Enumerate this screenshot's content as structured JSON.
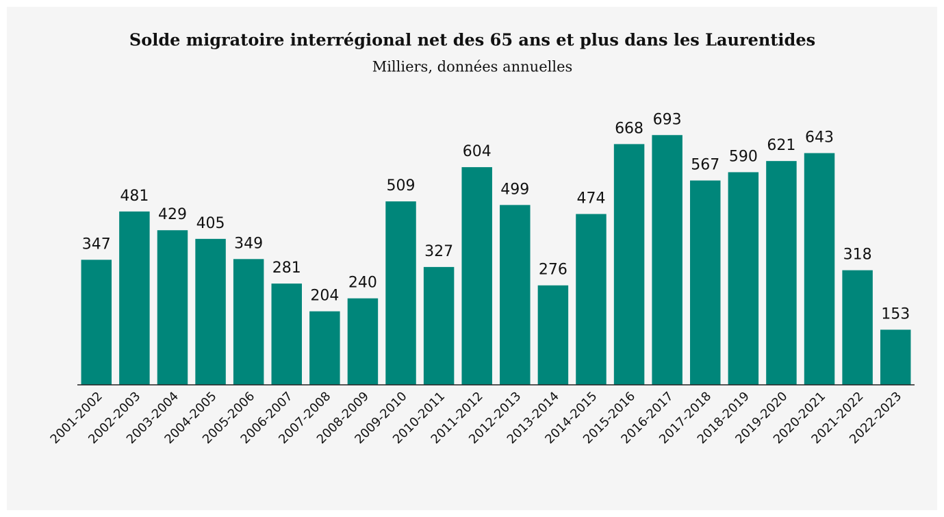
{
  "chart_data": {
    "type": "bar",
    "title": "Solde migratoire interrégional net des 65 ans et plus dans les Laurentides",
    "subtitle": "Milliers, données annuelles",
    "categories": [
      "2001-2002",
      "2002-2003",
      "2003-2004",
      "2004-2005",
      "2005-2006",
      "2006-2007",
      "2007-2008",
      "2008-2009",
      "2009-2010",
      "2010-2011",
      "2011-2012",
      "2012-2013",
      "2013-2014",
      "2014-2015",
      "2015-2016",
      "2016-2017",
      "2017-2018",
      "2018-2019",
      "2019-2020",
      "2020-2021",
      "2021-2022",
      "2022-2023"
    ],
    "values": [
      347,
      481,
      429,
      405,
      349,
      281,
      204,
      240,
      509,
      327,
      604,
      499,
      276,
      474,
      668,
      693,
      567,
      590,
      621,
      643,
      318,
      153
    ],
    "color": "#00867a",
    "ylim": [
      0,
      760
    ]
  }
}
